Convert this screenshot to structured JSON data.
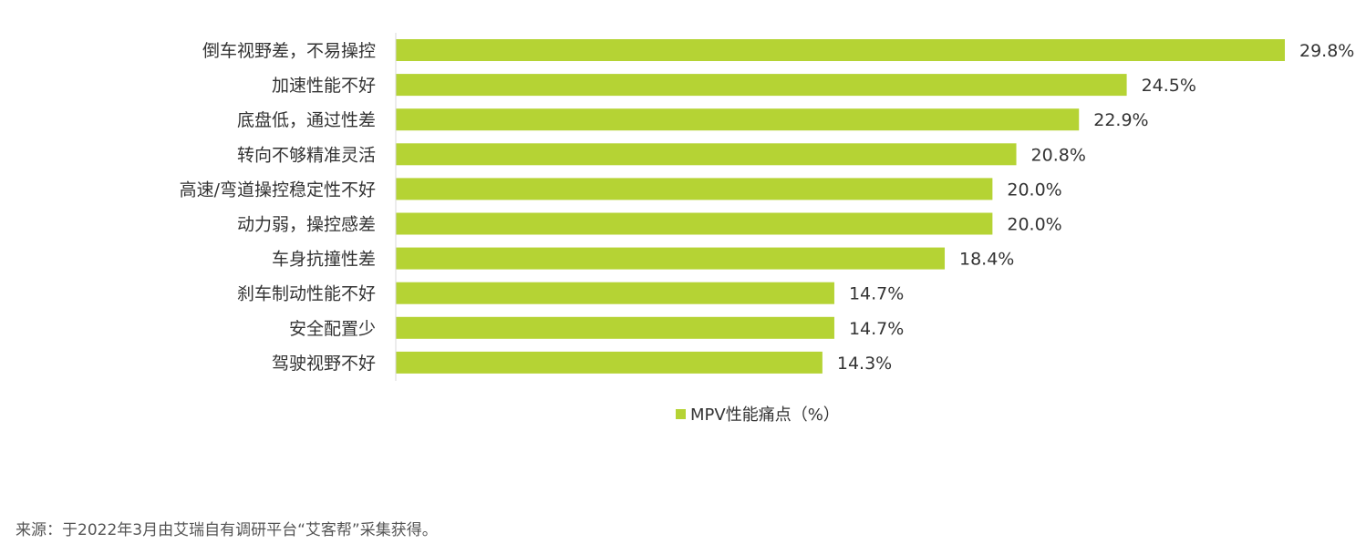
{
  "chart_data": {
    "type": "bar",
    "orientation": "horizontal",
    "categories": [
      "倒车视野差，不易操控",
      "加速性能不好",
      "底盘低，通过性差",
      "转向不够精准灵活",
      "高速/弯道操控稳定性不好",
      "动力弱，操控感差",
      "车身抗撞性差",
      "刹车制动性能不好",
      "安全配置少",
      "驾驶视野不好"
    ],
    "series": [
      {
        "name": "MPV性能痛点（%）",
        "values": [
          29.8,
          24.5,
          22.9,
          20.8,
          20.0,
          20.0,
          18.4,
          14.7,
          14.7,
          14.3
        ],
        "labels": [
          "29.8%",
          "24.5%",
          "22.9%",
          "20.8%",
          "20.0%",
          "20.0%",
          "18.4%",
          "14.7%",
          "14.7%",
          "14.3%"
        ]
      }
    ],
    "legend": "bottom",
    "grid": false,
    "xlim": [
      0,
      29.8
    ],
    "bar_color": "#b5d334",
    "axis_color": "#d9d9d9"
  },
  "legend": {
    "label": "MPV性能痛点（%）"
  },
  "source_note": "来源：于2022年3月由艾瑞自有调研平台“艾客帮”采集获得。"
}
